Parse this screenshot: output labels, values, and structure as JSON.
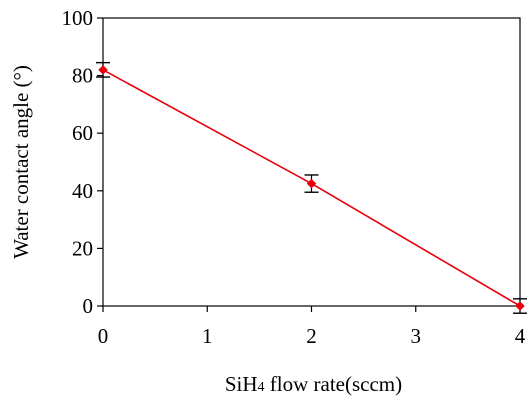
{
  "chart_data": {
    "type": "line",
    "title": "",
    "xlabel": {
      "parts": [
        {
          "text": "SiH",
          "sub": false
        },
        {
          "text": "4",
          "sub": true
        },
        {
          "text": " flow rate(sccm)",
          "sub": false
        }
      ]
    },
    "ylabel": "Water contact angle (°)",
    "xlim": [
      0,
      4
    ],
    "ylim": [
      0,
      100
    ],
    "x_ticks": [
      0,
      1,
      2,
      3,
      4
    ],
    "y_ticks": [
      0,
      20,
      40,
      60,
      80,
      100
    ],
    "grid": false,
    "series": [
      {
        "color": "#e8000b",
        "marker": "diamond",
        "points": [
          {
            "x": 0,
            "y": 82,
            "err": 2.5
          },
          {
            "x": 2,
            "y": 42.5,
            "err": 3.0
          },
          {
            "x": 4,
            "y": 0,
            "err": 2.5
          }
        ]
      }
    ]
  }
}
